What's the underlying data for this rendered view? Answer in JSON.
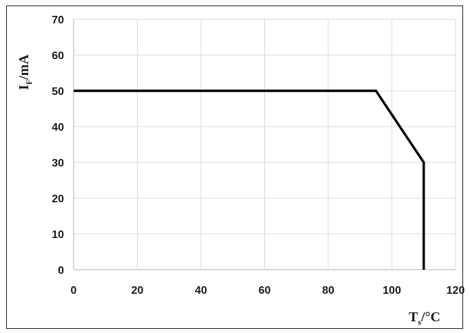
{
  "chart_data": {
    "type": "line",
    "title": "",
    "grid": true,
    "legend": "none",
    "xlim": [
      0,
      120
    ],
    "ylim": [
      0,
      70
    ],
    "x_ticks": [
      0,
      20,
      40,
      60,
      80,
      100,
      120
    ],
    "y_ticks": [
      0,
      10,
      20,
      30,
      40,
      50,
      60,
      70
    ],
    "x_tick_labels": [
      "0",
      "20",
      "40",
      "60",
      "80",
      "100",
      "120"
    ],
    "y_tick_labels": [
      "0",
      "10",
      "20",
      "30",
      "40",
      "50",
      "60",
      "70"
    ],
    "xlabel": {
      "main": "T",
      "sub": "s",
      "unit": "/°C"
    },
    "ylabel": {
      "main": "I",
      "sub": "F",
      "unit": "/mA"
    },
    "series": [
      {
        "x": [
          0,
          95,
          110,
          110
        ],
        "y": [
          50,
          50,
          30,
          0
        ]
      }
    ],
    "colors": {
      "line": "#000000",
      "grid": "#d9d9d9",
      "axis": "#bfbfbf",
      "text": "#1a1a1a"
    }
  }
}
